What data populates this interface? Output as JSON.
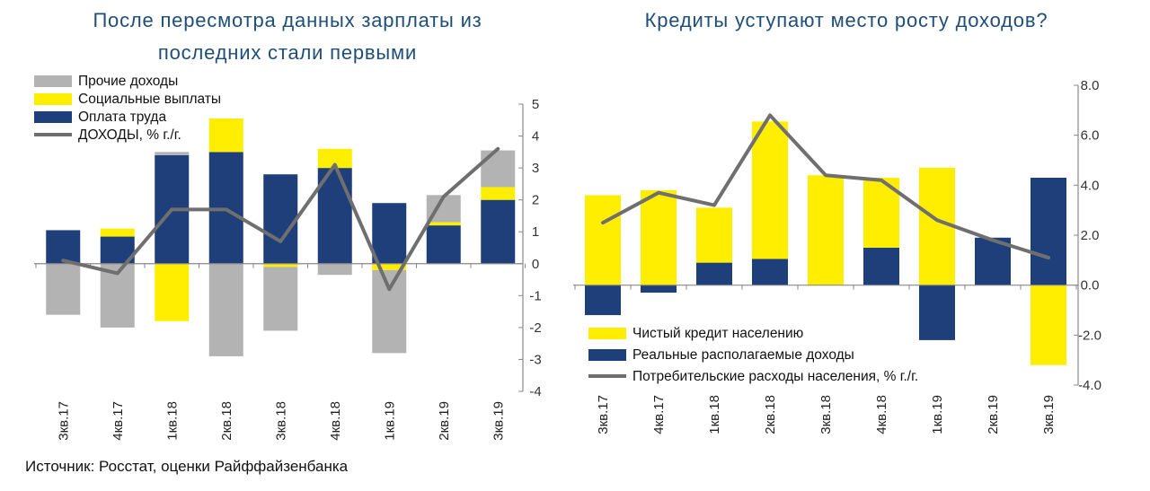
{
  "source": "Источник: Росстат, оценки Райффайзенбанка",
  "colors": {
    "gray": "#b3b3b3",
    "yellow": "#ffee00",
    "navy": "#1f3f7a",
    "line": "#6f6f6f",
    "axis": "#888888"
  },
  "chart_data": [
    {
      "type": "bar",
      "stacked": true,
      "title_lines": [
        "После пересмотра данных зарплаты из",
        "последних стали первыми"
      ],
      "categories": [
        "3кв.17",
        "4кв.17",
        "1кв.18",
        "2кв.18",
        "3кв.18",
        "4кв.18",
        "1кв.19",
        "2кв.19",
        "3кв.19"
      ],
      "ylim": [
        -4,
        5
      ],
      "yticks": [
        "5",
        "4",
        "3",
        "2",
        "1",
        "0",
        "-1",
        "-2",
        "-3",
        "-4"
      ],
      "y_axis_side": "right",
      "legend_position": "top-left",
      "series": [
        {
          "name": "Прочие доходы",
          "kind": "bar",
          "color": "gray",
          "values": [
            -1.6,
            -2.0,
            0.1,
            -2.9,
            -2.0,
            -0.35,
            -2.6,
            0.85,
            1.15
          ]
        },
        {
          "name": "Социальные выплаты",
          "kind": "bar",
          "color": "yellow",
          "values": [
            0.0,
            0.25,
            -1.8,
            1.05,
            -0.1,
            0.6,
            -0.2,
            0.1,
            0.4
          ]
        },
        {
          "name": "Оплата труда",
          "kind": "bar",
          "color": "navy",
          "values": [
            1.05,
            0.85,
            3.4,
            3.5,
            2.8,
            3.0,
            1.9,
            1.2,
            2.0
          ]
        },
        {
          "name": "ДОХОДЫ, % г./г.",
          "kind": "line",
          "color": "line",
          "values": [
            0.1,
            -0.3,
            1.7,
            1.7,
            0.7,
            3.1,
            -0.8,
            2.1,
            3.6
          ]
        }
      ]
    },
    {
      "type": "bar",
      "stacked": true,
      "title_lines": [
        "Кредиты уступают место росту доходов?"
      ],
      "categories": [
        "3кв.17",
        "4кв.17",
        "1кв.18",
        "2кв.18",
        "3кв.18",
        "4кв.18",
        "1кв.19",
        "2кв.19",
        "3кв.19"
      ],
      "ylim": [
        -4,
        8
      ],
      "yticks": [
        "8.0",
        "6.0",
        "4.0",
        "2.0",
        "0.0",
        "-2.0",
        "-4.0"
      ],
      "y_axis_side": "right",
      "legend_position": "bottom-left",
      "series": [
        {
          "name": "Чистый кредит населению",
          "kind": "bar",
          "color": "yellow",
          "values": [
            3.6,
            3.8,
            2.2,
            5.5,
            4.4,
            2.8,
            4.7,
            0.0,
            -3.2
          ]
        },
        {
          "name": "Реальные располагаемые доходы",
          "kind": "bar",
          "color": "navy",
          "values": [
            -1.2,
            -0.3,
            0.9,
            1.05,
            0.0,
            1.5,
            -2.2,
            1.9,
            4.3
          ]
        },
        {
          "name": "Потребительские расходы населения, % г./г.",
          "kind": "line",
          "color": "line",
          "values": [
            2.5,
            3.7,
            3.2,
            6.8,
            4.4,
            4.2,
            2.6,
            1.8,
            1.1
          ]
        }
      ]
    }
  ]
}
